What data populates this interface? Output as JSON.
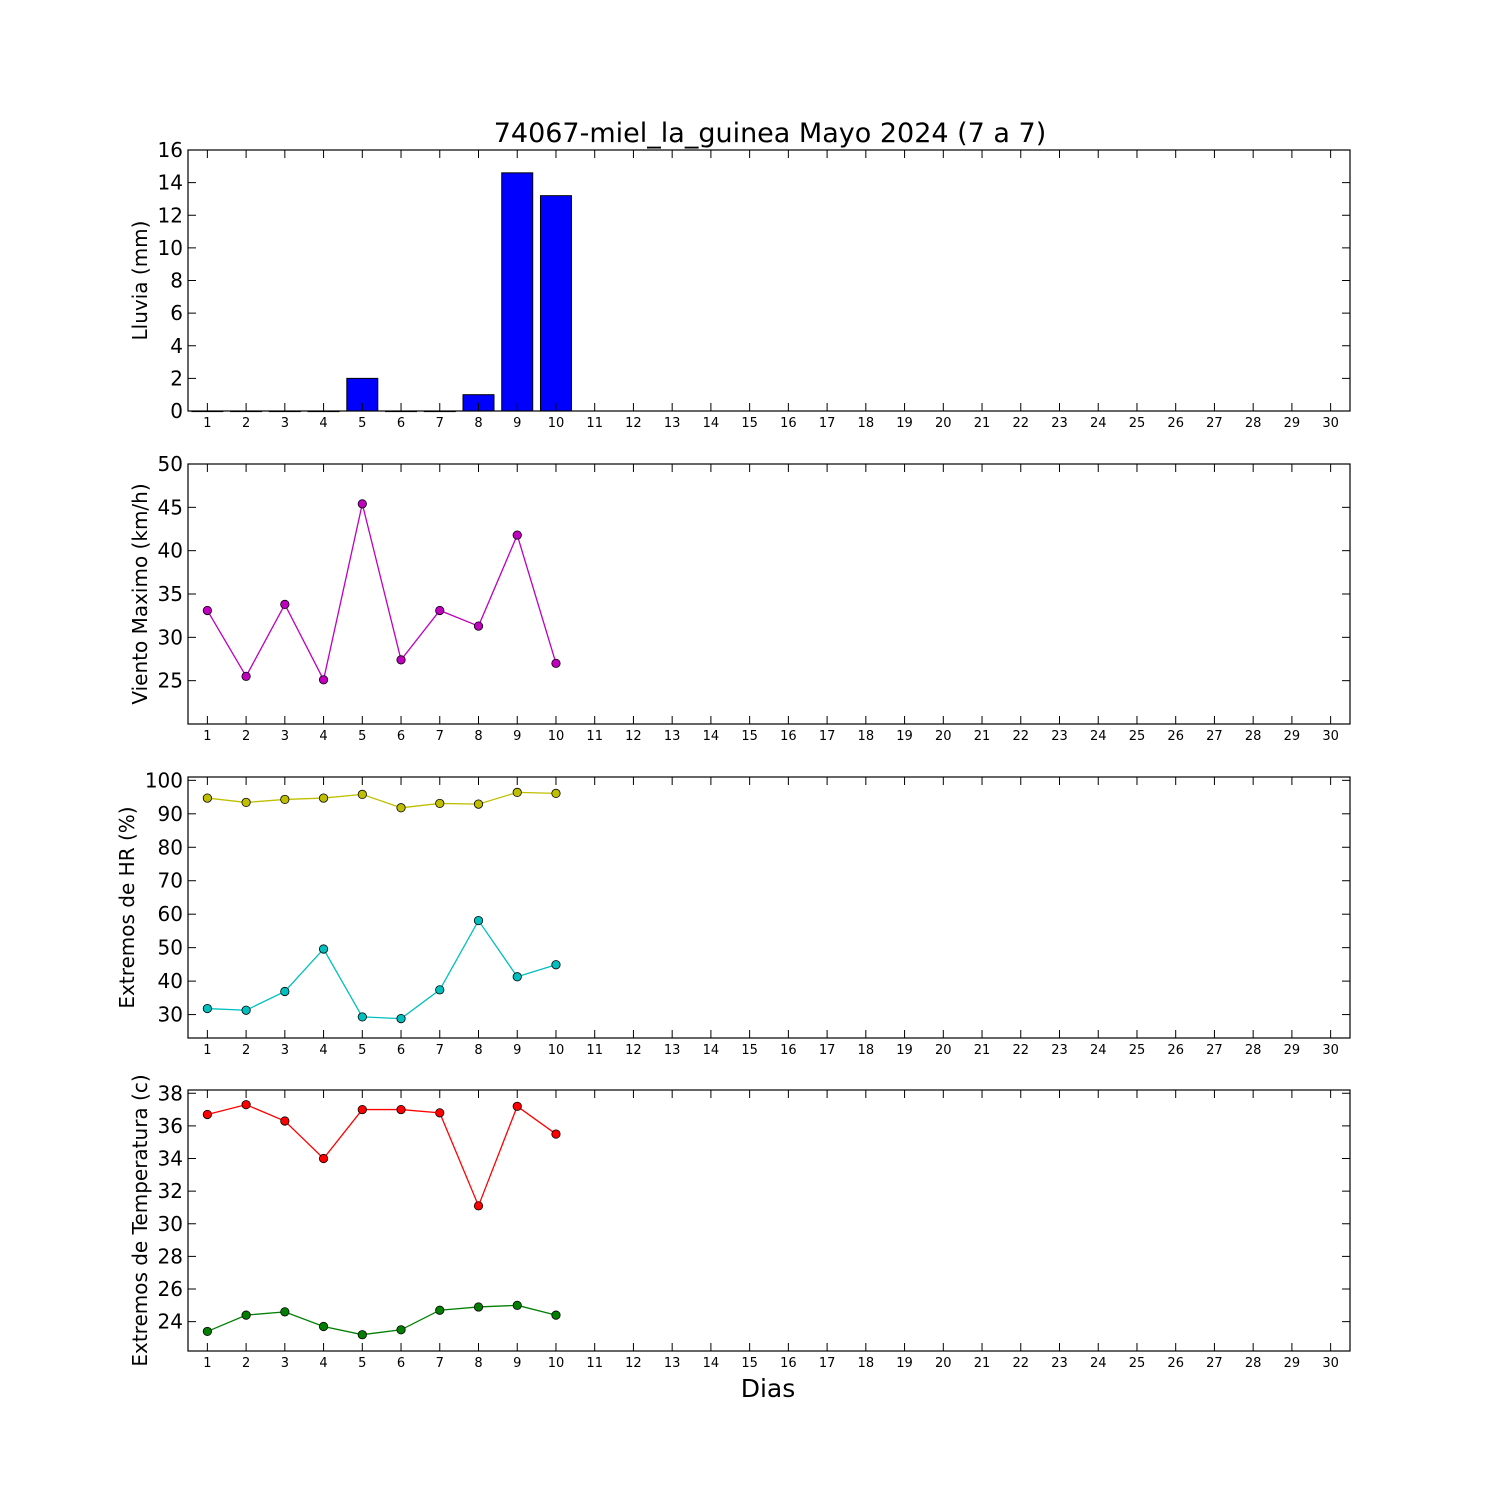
{
  "title": "74067-miel_la_guinea Mayo 2024  (7 a 7)",
  "xlabel": "Dias",
  "chart_data": [
    {
      "type": "bar",
      "ylabel": "Lluvia (mm)",
      "x": [
        1,
        2,
        3,
        4,
        5,
        6,
        7,
        8,
        9,
        10
      ],
      "xlim": [
        0.5,
        30.5
      ],
      "xticks": [
        1,
        2,
        3,
        4,
        5,
        6,
        7,
        8,
        9,
        10,
        11,
        12,
        13,
        14,
        15,
        16,
        17,
        18,
        19,
        20,
        21,
        22,
        23,
        24,
        25,
        26,
        27,
        28,
        29,
        30
      ],
      "ylim": [
        0,
        16
      ],
      "yticks": [
        0,
        2,
        4,
        6,
        8,
        10,
        12,
        14,
        16
      ],
      "series": [
        {
          "values": [
            0,
            0,
            0,
            0,
            2.0,
            0,
            0,
            1.0,
            14.6,
            13.2
          ],
          "color": "#0000ff"
        }
      ]
    },
    {
      "type": "line",
      "ylabel": "Viento Maximo (km/h)",
      "x": [
        1,
        2,
        3,
        4,
        5,
        6,
        7,
        8,
        9,
        10
      ],
      "xlim": [
        0.5,
        30.5
      ],
      "xticks": [
        1,
        2,
        3,
        4,
        5,
        6,
        7,
        8,
        9,
        10,
        11,
        12,
        13,
        14,
        15,
        16,
        17,
        18,
        19,
        20,
        21,
        22,
        23,
        24,
        25,
        26,
        27,
        28,
        29,
        30
      ],
      "ylim": [
        20,
        50
      ],
      "yticks": [
        25,
        30,
        35,
        40,
        45,
        50
      ],
      "series": [
        {
          "values": [
            33.1,
            25.5,
            33.8,
            25.1,
            45.4,
            27.4,
            33.1,
            31.3,
            41.8,
            27.0
          ],
          "color": "#bf00bf"
        }
      ]
    },
    {
      "type": "line",
      "ylabel": "Extremos de HR (%)",
      "x": [
        1,
        2,
        3,
        4,
        5,
        6,
        7,
        8,
        9,
        10
      ],
      "xlim": [
        0.5,
        30.5
      ],
      "xticks": [
        1,
        2,
        3,
        4,
        5,
        6,
        7,
        8,
        9,
        10,
        11,
        12,
        13,
        14,
        15,
        16,
        17,
        18,
        19,
        20,
        21,
        22,
        23,
        24,
        25,
        26,
        27,
        28,
        29,
        30
      ],
      "ylim": [
        23,
        101
      ],
      "yticks": [
        30,
        40,
        50,
        60,
        70,
        80,
        90,
        100
      ],
      "series": [
        {
          "values": [
            94.7,
            93.4,
            94.3,
            94.7,
            95.8,
            91.8,
            93.1,
            92.9,
            96.4,
            96.1
          ],
          "color": "#bfbf00"
        },
        {
          "values": [
            31.8,
            31.3,
            36.9,
            49.6,
            29.3,
            28.8,
            37.4,
            58.1,
            41.3,
            44.9
          ],
          "color": "#00bfbf"
        }
      ]
    },
    {
      "type": "line",
      "ylabel": "Extremos de Temperatura (c)",
      "x": [
        1,
        2,
        3,
        4,
        5,
        6,
        7,
        8,
        9,
        10
      ],
      "xlim": [
        0.5,
        30.5
      ],
      "xticks": [
        1,
        2,
        3,
        4,
        5,
        6,
        7,
        8,
        9,
        10,
        11,
        12,
        13,
        14,
        15,
        16,
        17,
        18,
        19,
        20,
        21,
        22,
        23,
        24,
        25,
        26,
        27,
        28,
        29,
        30
      ],
      "ylim": [
        22.2,
        38.2
      ],
      "yticks": [
        24,
        26,
        28,
        30,
        32,
        34,
        36,
        38
      ],
      "series": [
        {
          "values": [
            36.7,
            37.3,
            36.3,
            34.0,
            37.0,
            37.0,
            36.8,
            31.1,
            37.2,
            35.5
          ],
          "color": "#ff0000"
        },
        {
          "values": [
            23.4,
            24.4,
            24.6,
            23.7,
            23.2,
            23.5,
            24.7,
            24.9,
            25.0,
            24.4
          ],
          "color": "#007f00"
        }
      ]
    }
  ]
}
